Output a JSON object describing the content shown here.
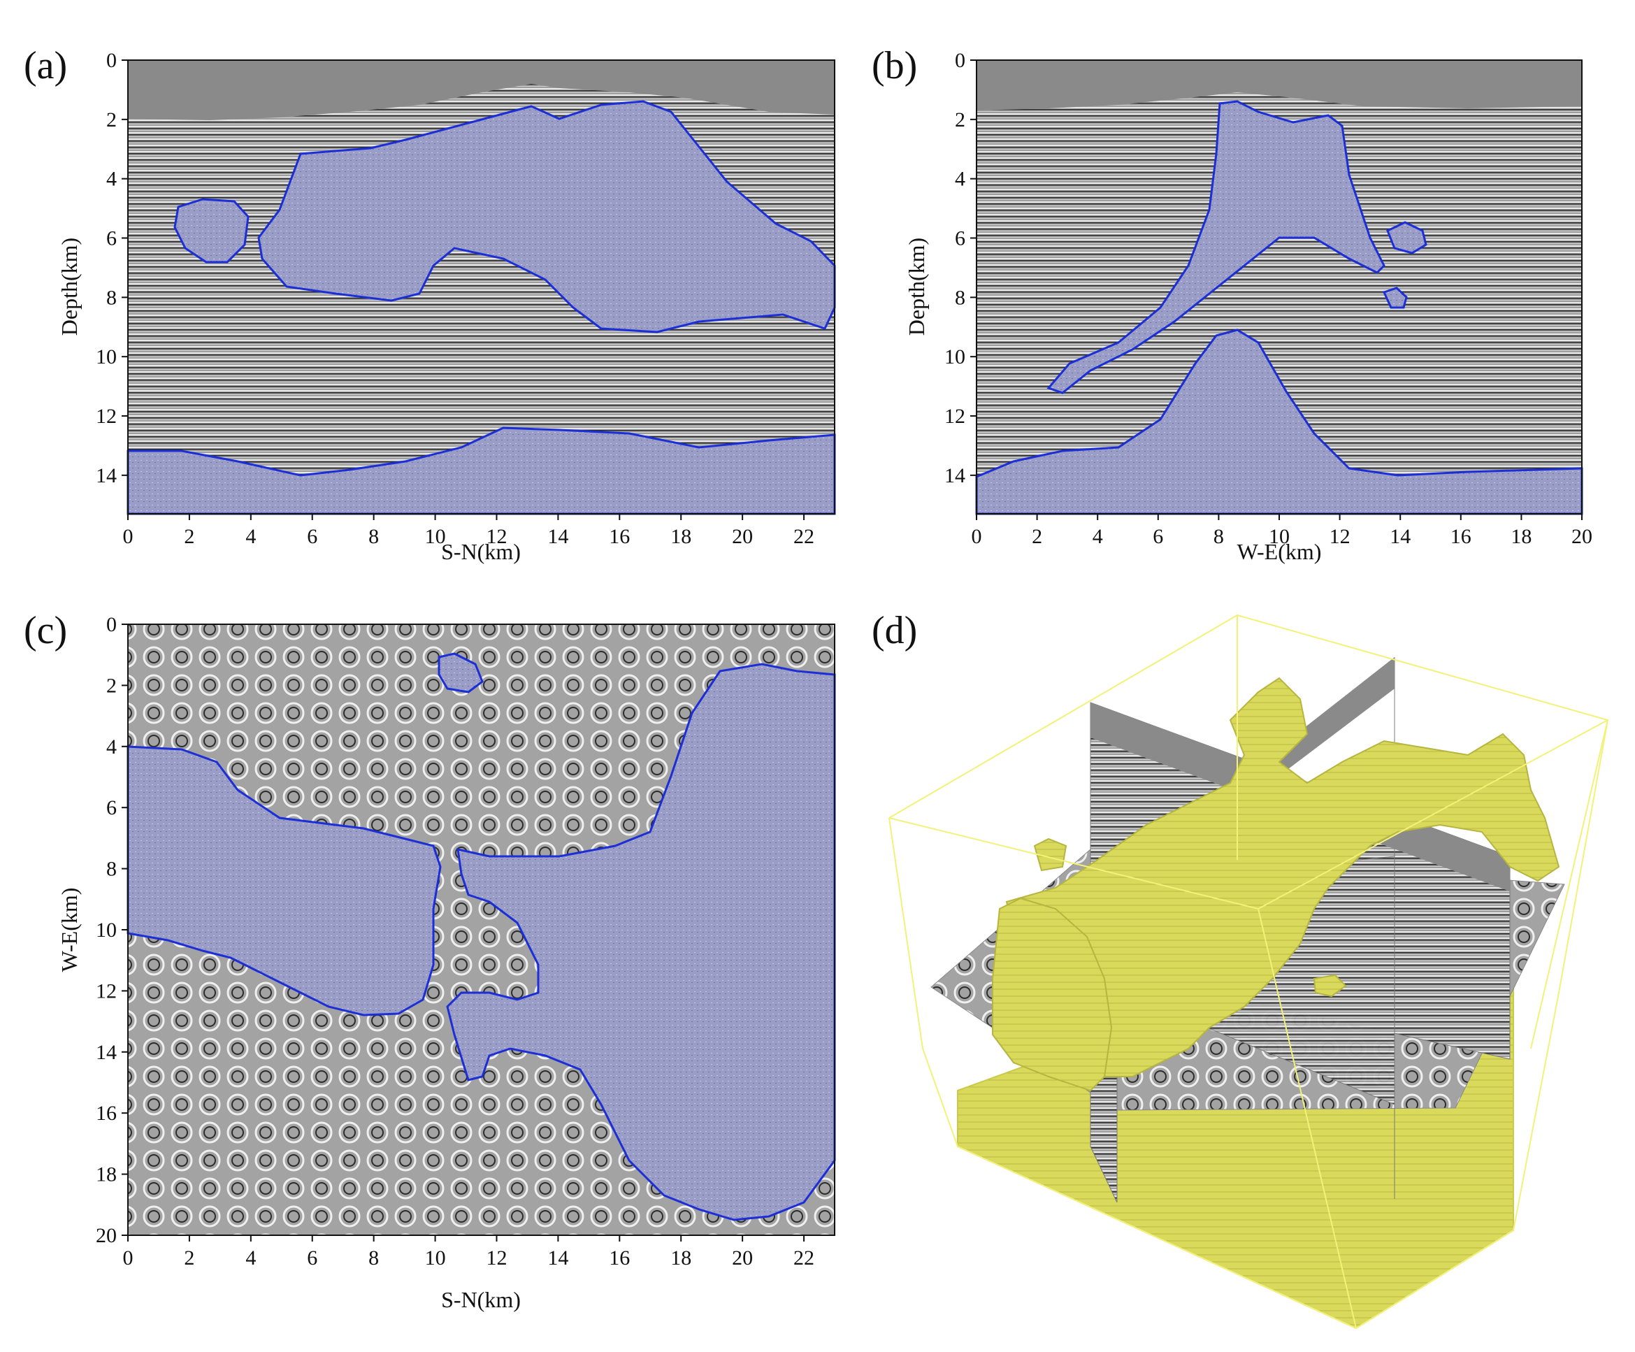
{
  "panels": [
    {
      "id": "a",
      "label": "(a)",
      "xlabel": "S-N(km)",
      "ylabel": "Depth(km)",
      "xticks": [
        "0",
        "2",
        "4",
        "6",
        "8",
        "10",
        "12",
        "14",
        "16",
        "18",
        "20",
        "22"
      ],
      "yticks": [
        "0",
        "2",
        "4",
        "6",
        "8",
        "10",
        "12",
        "14"
      ],
      "xlim": [
        0,
        23
      ],
      "ylim": [
        0,
        15.3
      ]
    },
    {
      "id": "b",
      "label": "(b)",
      "xlabel": "W-E(km)",
      "ylabel": "Depth(km)",
      "xticks": [
        "0",
        "2",
        "4",
        "6",
        "8",
        "10",
        "12",
        "14",
        "16",
        "18",
        "20"
      ],
      "yticks": [
        "0",
        "2",
        "4",
        "6",
        "8",
        "10",
        "12",
        "14"
      ],
      "xlim": [
        0,
        20
      ],
      "ylim": [
        0,
        15.3
      ]
    },
    {
      "id": "c",
      "label": "(c)",
      "xlabel": "S-N(km)",
      "ylabel": "W-E(km)",
      "xticks": [
        "0",
        "2",
        "4",
        "6",
        "8",
        "10",
        "12",
        "14",
        "16",
        "18",
        "20",
        "22"
      ],
      "yticks": [
        "0",
        "2",
        "4",
        "6",
        "8",
        "10",
        "12",
        "14",
        "16",
        "18",
        "20"
      ],
      "xlim": [
        0,
        23
      ],
      "ylim": [
        0,
        20
      ]
    },
    {
      "id": "d",
      "label": "(d)"
    }
  ],
  "colors": {
    "salt_fill": "#9a9dc6",
    "salt_outline": "#1c2fd6",
    "water": "#8a8a8a",
    "seismic_bg": "#9a9a9a",
    "isosurface": "#d8d85a",
    "box_edges": "#f2f27a"
  }
}
